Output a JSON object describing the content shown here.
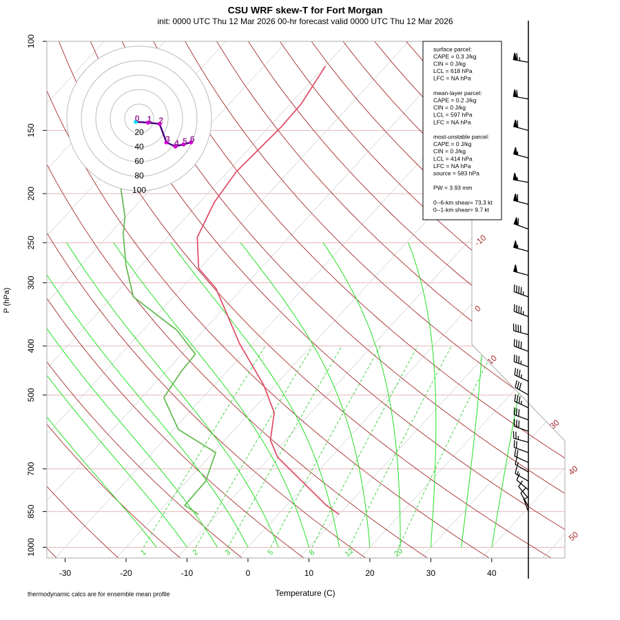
{
  "header": {
    "title": "CSU WRF skew-T for Fort Morgan",
    "subtitle": "init: 0000 UTC Thu 12 Mar 2026    00-hr forecast valid 0000 UTC Thu 12 Mar 2026"
  },
  "chart_data": {
    "type": "skewt",
    "xlabel": "Temperature (C)",
    "ylabel": "P (hPa)",
    "log_y": true,
    "xlim": [
      -33,
      52
    ],
    "ylim": [
      1050,
      100
    ],
    "xticks": [
      -30,
      -20,
      -10,
      0,
      10,
      20,
      30,
      40
    ],
    "yticks": [
      100,
      150,
      200,
      250,
      300,
      400,
      500,
      700,
      850,
      1000
    ],
    "isotherm_labels": [
      -10,
      0,
      10,
      30,
      40,
      50
    ],
    "mixing_ratio_labels": [
      1,
      2,
      3,
      5,
      8,
      12,
      20
    ],
    "series": [
      {
        "color": "#e0506a",
        "pressure": [
          861,
          826,
          664,
          614,
          542,
          478,
          396,
          308,
          281,
          244,
          208,
          181,
          148,
          133,
          112
        ],
        "values": [
          10.0,
          6.5,
          -8.7,
          -12.5,
          -16.0,
          -21.9,
          -32.1,
          -44.3,
          -50.2,
          -55.1,
          -57.6,
          -58.6,
          -58.0,
          -58.2,
          -59.9
        ]
      },
      {
        "color": "#66bb55",
        "pressure": [
          861,
          826,
          741,
          650,
          585,
          506,
          449,
          415,
          372,
          320,
          277,
          240,
          222,
          187
        ],
        "values": [
          -13.1,
          -16.7,
          -16.9,
          -19.6,
          -29.2,
          -36.4,
          -37.5,
          -37.8,
          -44.5,
          -56.6,
          -62.6,
          -67.8,
          -70.1,
          -76.7
        ]
      }
    ],
    "winds": {
      "pressure": [
        110,
        130,
        150,
        170,
        190,
        210,
        235,
        260,
        290,
        320,
        350,
        380,
        410,
        440,
        470,
        500,
        530,
        560,
        590,
        620,
        650,
        680,
        710,
        740,
        770,
        800,
        830,
        850
      ],
      "speed": [
        65,
        60,
        60,
        55,
        55,
        60,
        60,
        55,
        50,
        45,
        45,
        40,
        40,
        35,
        35,
        30,
        35,
        30,
        30,
        25,
        20,
        20,
        15,
        15,
        10,
        10,
        10,
        5
      ],
      "direction": [
        280,
        280,
        285,
        285,
        280,
        285,
        290,
        285,
        285,
        290,
        290,
        285,
        290,
        290,
        295,
        300,
        295,
        290,
        290,
        285,
        290,
        295,
        300,
        300,
        310,
        320,
        330,
        340
      ]
    },
    "hodograph": {
      "rings": [
        20,
        40,
        60,
        80,
        100
      ],
      "heights": [
        0,
        1,
        2,
        3,
        4,
        5,
        6
      ],
      "u": [
        -4.7,
        12.3,
        28.3,
        37.7,
        50.0,
        61.3,
        71.7
      ],
      "v": [
        -4.7,
        -5.7,
        -7.5,
        -33.0,
        -38.7,
        -35.8,
        -33.0
      ]
    }
  },
  "info": {
    "blocks": [
      [
        "surface parcel:",
        "CAPE = 0.3 J/kg",
        "CIN = 0 J/kg",
        "LCL = 618 hPa",
        "LFC = NA hPa"
      ],
      [
        "mean-layer parcel:",
        "CAPE = 0.2 J/kg",
        "CIN = 0 J/kg",
        "LCL = 597 hPa",
        "LFC = NA hPa"
      ],
      [
        "most-unstable parcel:",
        "CAPE = 0 J/kg",
        "CIN = 0 J/kg",
        "LCL = 414 hPa",
        "LFC = NA hPa",
        "source = 583 hPa"
      ],
      [
        "PW =  3.93 mm"
      ],
      [
        "0--6-km shear= 73.3 kt",
        "0--1-km shear= 9.7 kt"
      ]
    ]
  },
  "footnote": "thermodynamic calcs are for ensemble mean profile"
}
